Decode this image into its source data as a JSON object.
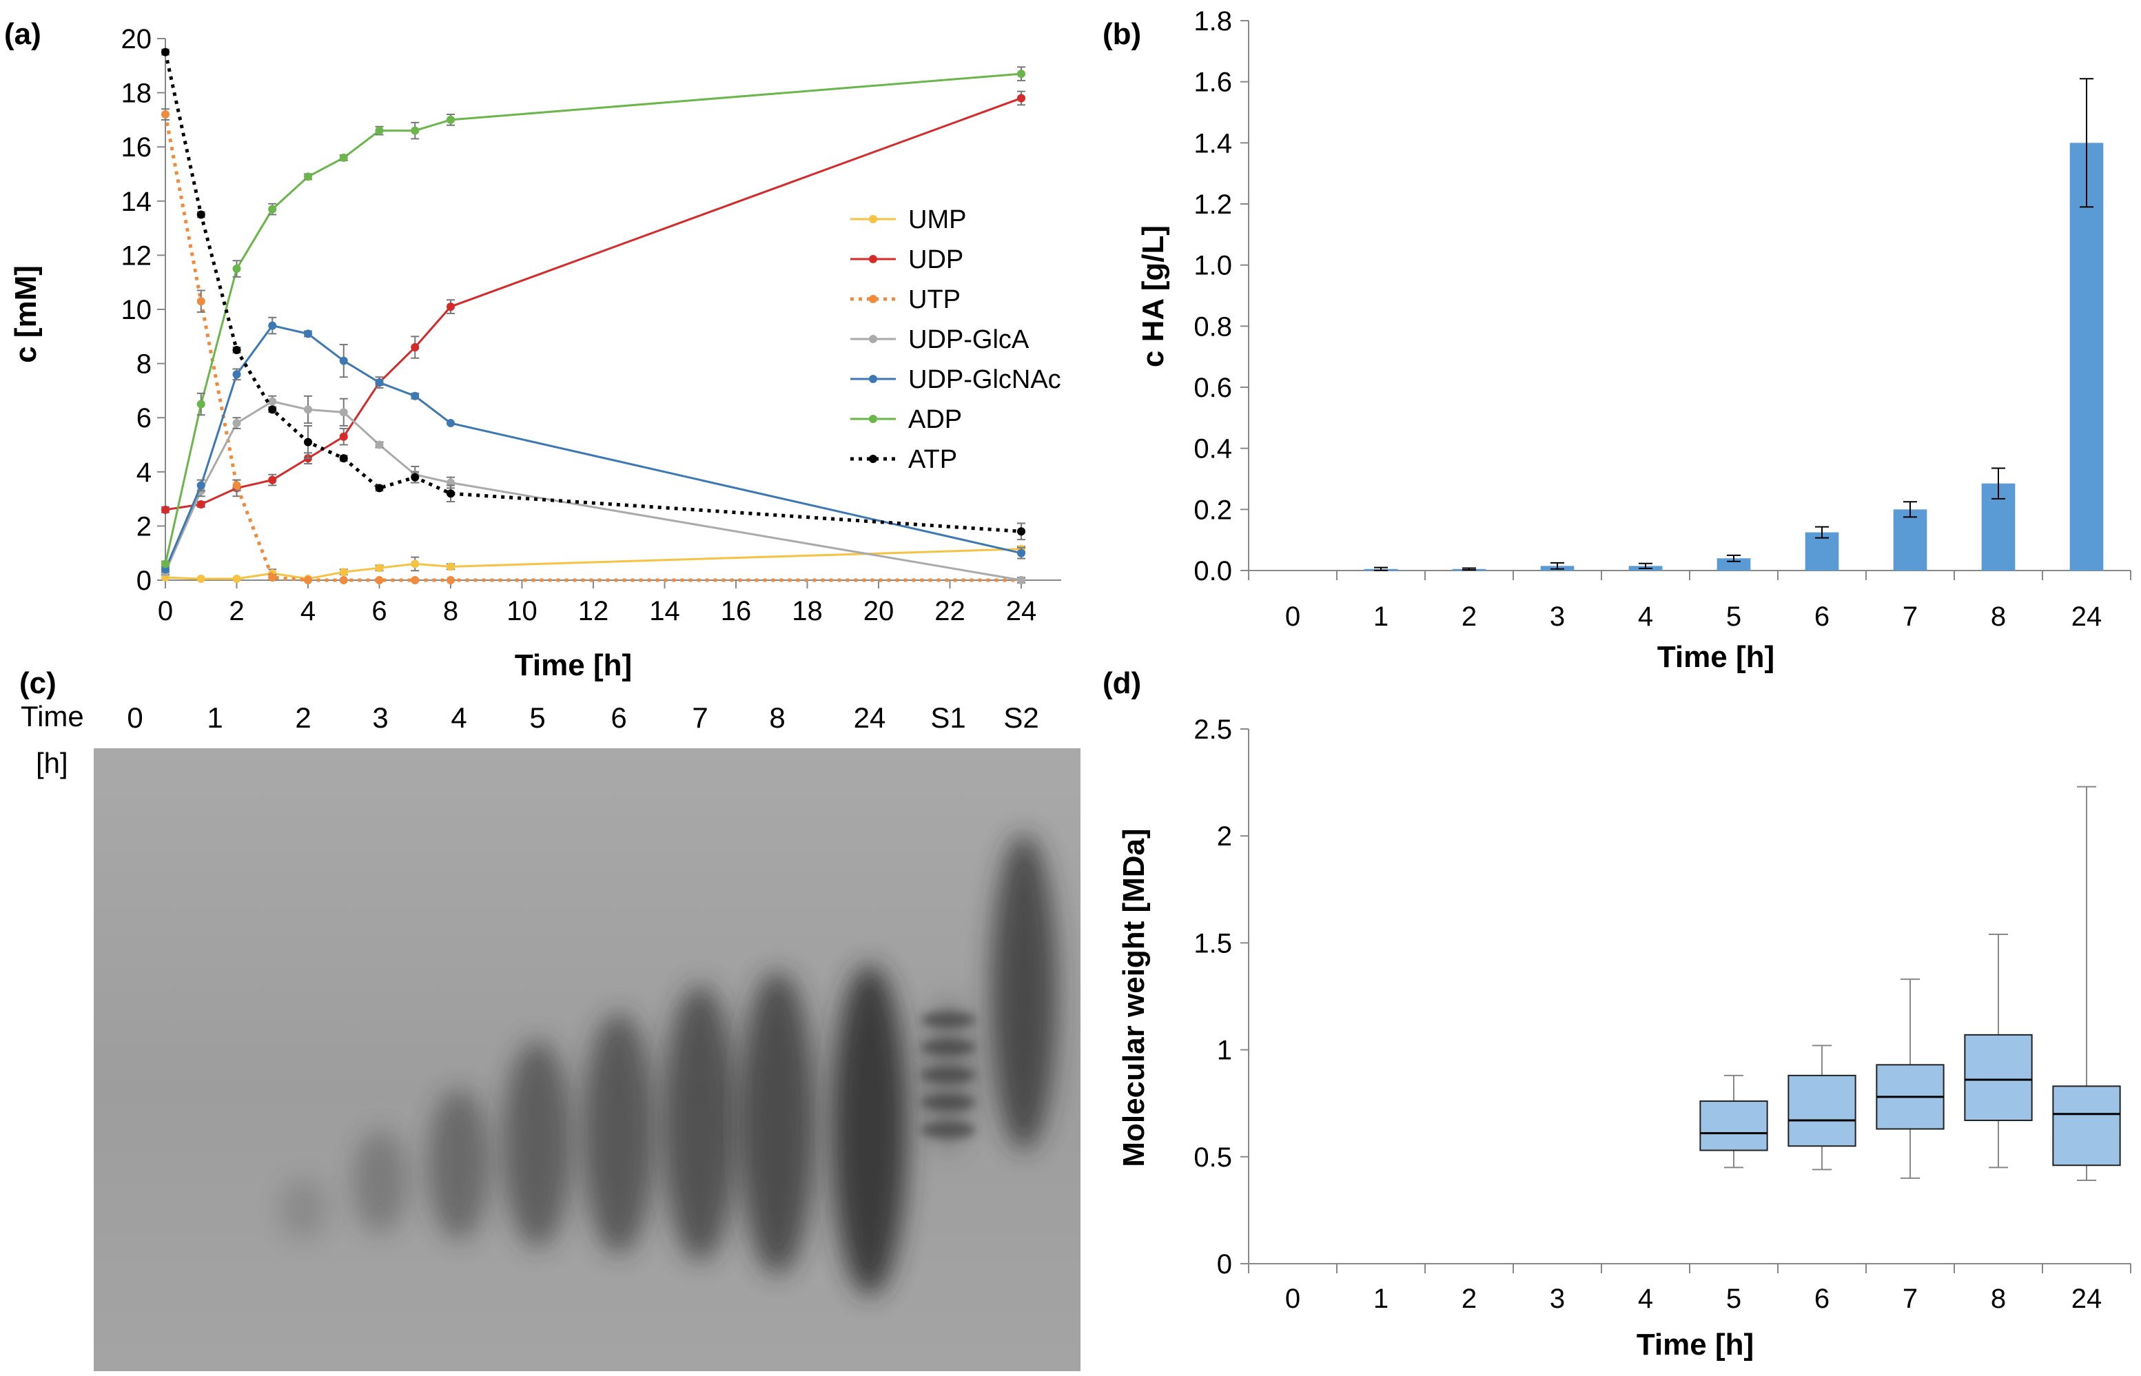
{
  "panels": {
    "a": {
      "label": "(a)"
    },
    "b": {
      "label": "(b)"
    },
    "c": {
      "label": "(c)"
    },
    "d": {
      "label": "(d)"
    }
  },
  "chart_data": [
    {
      "id": "a",
      "type": "line",
      "xlabel": "Time [h]",
      "ylabel": "c [mM]",
      "xlim": [
        0,
        25
      ],
      "ylim": [
        0,
        20
      ],
      "xticks": [
        0,
        2,
        4,
        6,
        8,
        10,
        12,
        14,
        16,
        18,
        20,
        22,
        24
      ],
      "yticks": [
        0,
        2,
        4,
        6,
        8,
        10,
        12,
        14,
        16,
        18,
        20
      ],
      "legend_position": "right",
      "x": [
        0,
        1,
        2,
        3,
        4,
        5,
        6,
        7,
        8,
        24
      ],
      "series": [
        {
          "name": "UMP",
          "color": "#f5c242",
          "dash": false,
          "values": [
            0.1,
            0.05,
            0.05,
            0.25,
            0.05,
            0.3,
            0.45,
            0.6,
            0.5,
            1.15
          ],
          "errors": [
            0.05,
            0.05,
            0.05,
            0.15,
            0.05,
            0.1,
            0.1,
            0.25,
            0.1,
            0.1
          ]
        },
        {
          "name": "UDP",
          "color": "#d42a2a",
          "dash": false,
          "values": [
            2.6,
            2.8,
            3.4,
            3.7,
            4.5,
            5.3,
            7.3,
            8.6,
            10.1,
            17.8
          ],
          "errors": [
            0.1,
            0.1,
            0.3,
            0.2,
            0.2,
            0.3,
            0.2,
            0.4,
            0.25,
            0.25
          ]
        },
        {
          "name": "UTP",
          "color": "#f08a3c",
          "dash": true,
          "values": [
            17.2,
            10.3,
            3.5,
            0.1,
            0.0,
            0.0,
            0.0,
            0.0,
            0.0,
            0.0
          ],
          "errors": [
            0.2,
            0.4,
            0.2,
            0.1,
            0.05,
            0.05,
            0.05,
            0.05,
            0.05,
            0.05
          ]
        },
        {
          "name": "UDP-GlcA",
          "color": "#aaaaaa",
          "dash": false,
          "values": [
            0.3,
            3.3,
            5.8,
            6.6,
            6.3,
            6.2,
            5.0,
            3.9,
            3.6,
            0.0
          ],
          "errors": [
            0.1,
            0.2,
            0.2,
            0.2,
            0.5,
            0.5,
            0.1,
            0.3,
            0.2,
            0.1
          ]
        },
        {
          "name": "UDP-GlcNAc",
          "color": "#3c78b4",
          "dash": false,
          "values": [
            0.4,
            3.5,
            7.6,
            9.4,
            9.1,
            8.1,
            7.3,
            6.8,
            5.8,
            1.0
          ],
          "errors": [
            0.1,
            0.2,
            0.2,
            0.3,
            0.1,
            0.6,
            0.1,
            0.1,
            0.05,
            0.2
          ]
        },
        {
          "name": "ADP",
          "color": "#6ab64a",
          "dash": false,
          "values": [
            0.6,
            6.5,
            11.5,
            13.7,
            14.9,
            15.6,
            16.6,
            16.6,
            17.0,
            18.7
          ],
          "errors": [
            0.1,
            0.4,
            0.3,
            0.2,
            0.1,
            0.1,
            0.15,
            0.3,
            0.2,
            0.25
          ]
        },
        {
          "name": "ATP",
          "color": "#000000",
          "dash": true,
          "values": [
            19.5,
            13.5,
            8.5,
            6.3,
            5.1,
            4.5,
            3.4,
            3.8,
            3.2,
            1.8
          ],
          "errors": [
            0.1,
            0.1,
            0.1,
            0.1,
            0.6,
            0.1,
            0.1,
            0.2,
            0.3,
            0.3
          ]
        }
      ]
    },
    {
      "id": "b",
      "type": "bar",
      "xlabel": "Time [h]",
      "ylabel": "c HA [g/L]",
      "ylim": [
        0,
        1.8
      ],
      "yticks": [
        "0.0",
        "0.2",
        "0.4",
        "0.6",
        "0.8",
        "1.0",
        "1.2",
        "1.4",
        "1.6",
        "1.8"
      ],
      "categories": [
        "0",
        "1",
        "2",
        "3",
        "4",
        "5",
        "6",
        "7",
        "8",
        "24"
      ],
      "values": [
        0.0,
        0.005,
        0.005,
        0.015,
        0.015,
        0.04,
        0.125,
        0.2,
        0.285,
        1.4
      ],
      "errors": [
        0.0,
        0.005,
        0.003,
        0.01,
        0.008,
        0.01,
        0.018,
        0.025,
        0.05,
        0.21
      ],
      "bar_color": "#5b9bd5"
    },
    {
      "id": "d",
      "type": "box",
      "xlabel": "Time [h]",
      "ylabel": "Molecular weight [MDa]",
      "ylim": [
        0,
        2.5
      ],
      "yticks": [
        "0",
        "0.5",
        "1",
        "1.5",
        "2",
        "2.5"
      ],
      "categories": [
        "0",
        "1",
        "2",
        "3",
        "4",
        "5",
        "6",
        "7",
        "8",
        "24"
      ],
      "boxes": [
        null,
        null,
        null,
        null,
        null,
        {
          "min": 0.45,
          "q1": 0.53,
          "median": 0.61,
          "q3": 0.76,
          "max": 0.88
        },
        {
          "min": 0.44,
          "q1": 0.55,
          "median": 0.67,
          "q3": 0.88,
          "max": 1.02
        },
        {
          "min": 0.4,
          "q1": 0.63,
          "median": 0.78,
          "q3": 0.93,
          "max": 1.33
        },
        {
          "min": 0.45,
          "q1": 0.67,
          "median": 0.86,
          "q3": 1.07,
          "max": 1.54
        },
        {
          "min": 0.39,
          "q1": 0.46,
          "median": 0.7,
          "q3": 0.83,
          "max": 2.23
        }
      ],
      "box_color": "#9dc3e6"
    }
  ],
  "gel": {
    "time_label_1": "Time",
    "time_label_2": "[h]",
    "lanes": [
      "0",
      "1",
      "2",
      "3",
      "4",
      "5",
      "6",
      "7",
      "8",
      "24",
      "S1",
      "S2"
    ]
  }
}
